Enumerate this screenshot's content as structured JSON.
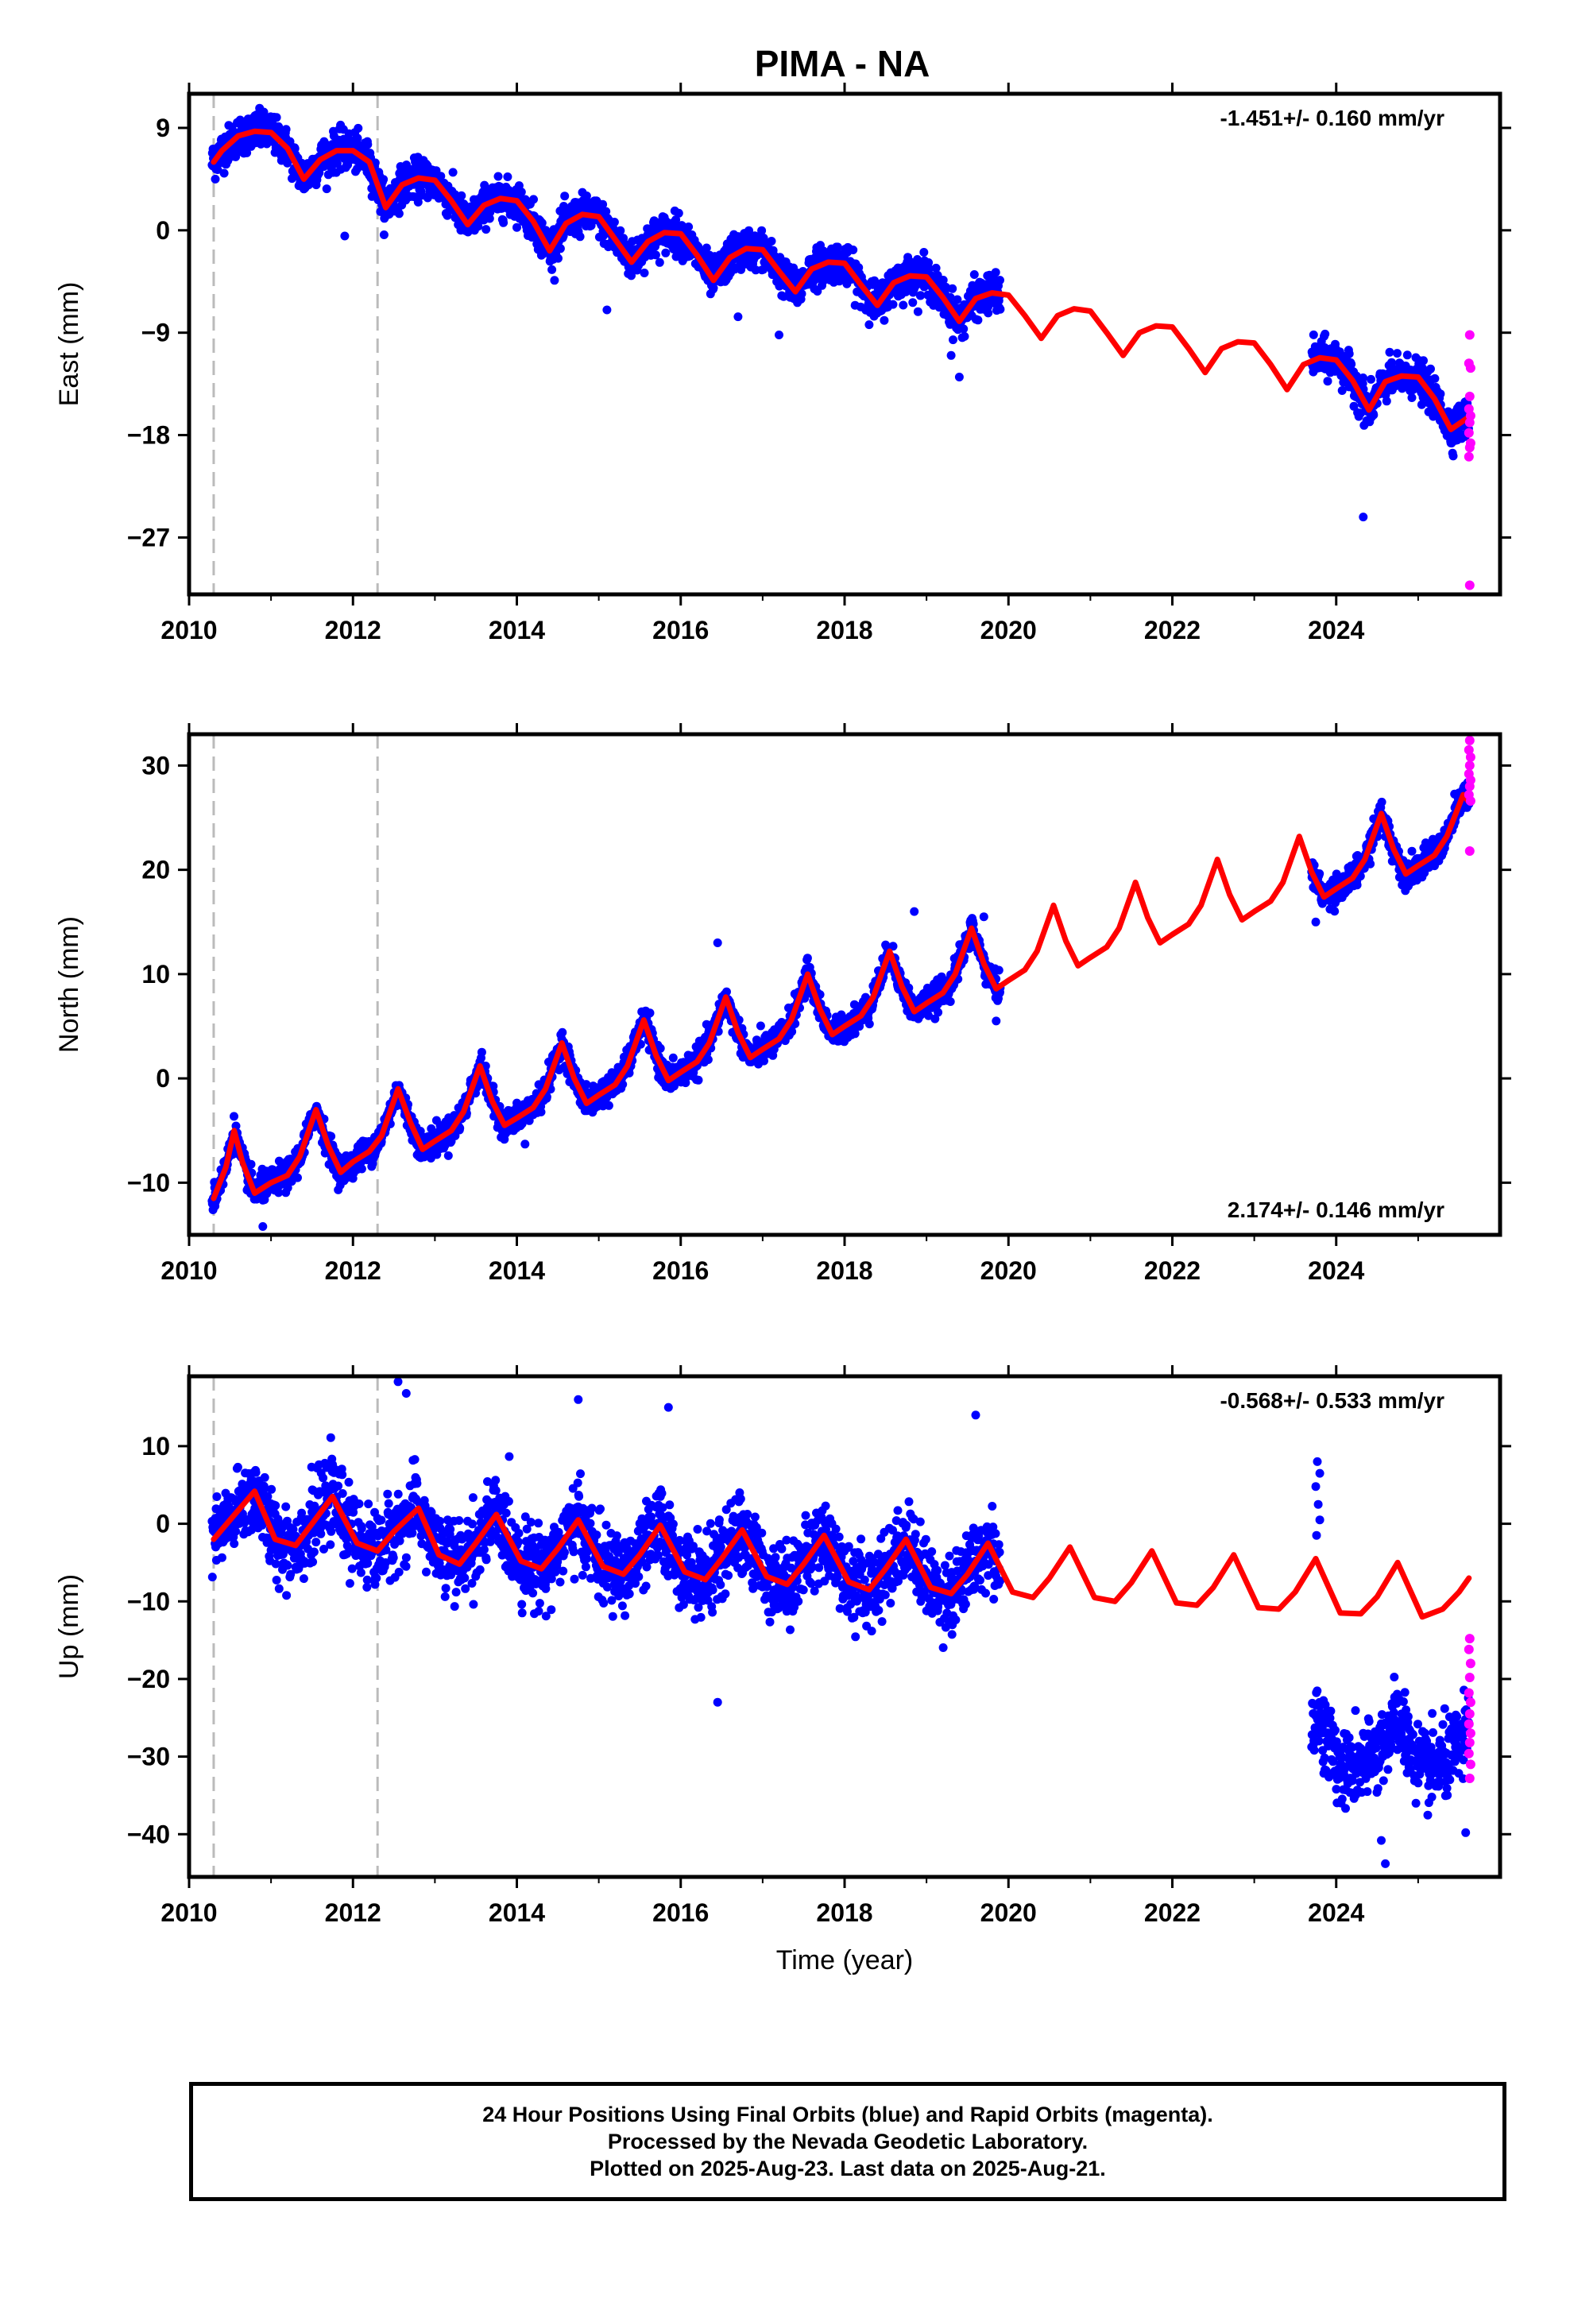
{
  "title": "PIMA - NA",
  "colors": {
    "final": "#0000ff",
    "rapid": "#ff00ff",
    "model": "#ff0000",
    "events": "#bbbbbb",
    "frame": "#000000"
  },
  "chart_data": [
    {
      "type": "scatter",
      "component": "east",
      "ylabel": "East (mm)",
      "xlabel": "",
      "xlim": [
        2010,
        2026
      ],
      "ylim": [
        -32,
        12
      ],
      "xticks": [
        2010,
        2012,
        2014,
        2016,
        2018,
        2020,
        2022,
        2024
      ],
      "yticks": [
        9,
        0,
        -9,
        -18,
        -27
      ],
      "rate_label": "-1.451+/- 0.160 mm/yr",
      "rate_position": "top-right",
      "event_lines": [
        2010.3,
        2012.3
      ],
      "model": {
        "x": [
          2010.3,
          2010.4,
          2010.6,
          2010.8,
          2011.0,
          2011.2,
          2011.4,
          2011.6,
          2011.8,
          2012.0,
          2012.2,
          2012.4,
          2012.6,
          2012.8,
          2013.0,
          2013.2,
          2013.4,
          2013.6,
          2013.8,
          2014.0,
          2014.2,
          2014.4,
          2014.6,
          2014.8,
          2015.0,
          2015.2,
          2015.4,
          2015.6,
          2015.8,
          2016.0,
          2016.2,
          2016.4,
          2016.6,
          2016.8,
          2017.0,
          2017.2,
          2017.4,
          2017.6,
          2017.8,
          2018.0,
          2018.2,
          2018.4,
          2018.6,
          2018.8,
          2019.0,
          2019.2,
          2019.4,
          2019.6,
          2019.8,
          2020.0,
          2020.2,
          2020.4,
          2020.6,
          2020.8,
          2021.0,
          2021.2,
          2021.4,
          2021.6,
          2021.8,
          2022.0,
          2022.2,
          2022.4,
          2022.6,
          2022.8,
          2023.0,
          2023.2,
          2023.4,
          2023.6,
          2023.8,
          2024.0,
          2024.2,
          2024.4,
          2024.6,
          2024.8,
          2025.0,
          2025.2,
          2025.4,
          2025.6
        ],
        "y": [
          6.0,
          7.0,
          8.3,
          8.7,
          8.6,
          7.2,
          4.5,
          6.2,
          7.0,
          7.0,
          6.0,
          2.0,
          4.0,
          4.6,
          4.4,
          2.6,
          0.5,
          2.2,
          2.8,
          2.6,
          0.8,
          -1.8,
          0.6,
          1.4,
          1.2,
          -0.8,
          -2.8,
          -1.0,
          -0.2,
          -0.3,
          -2.2,
          -4.4,
          -2.4,
          -1.6,
          -1.7,
          -3.6,
          -5.4,
          -3.4,
          -2.8,
          -2.9,
          -4.8,
          -6.6,
          -4.6,
          -4.0,
          -4.1,
          -5.9,
          -8.0,
          -6.0,
          -5.5,
          -5.7,
          -7.5,
          -9.5,
          -7.5,
          -6.9,
          -7.1,
          -9.0,
          -11.0,
          -9.0,
          -8.4,
          -8.5,
          -10.4,
          -12.5,
          -10.4,
          -9.8,
          -9.9,
          -11.8,
          -14.0,
          -11.8,
          -11.2,
          -11.4,
          -13.2,
          -15.8,
          -13.3,
          -12.8,
          -12.9,
          -14.8,
          -17.5,
          -16.5
        ]
      },
      "final_series": {
        "segments": [
          [
            2010.28,
            2019.9
          ],
          [
            2023.7,
            2025.62
          ]
        ],
        "amplitude_mm": 1.5,
        "outliers": [
          [
            2015.1,
            -7.0
          ],
          [
            2016.7,
            -7.6
          ],
          [
            2017.2,
            -9.2
          ],
          [
            2019.4,
            -12.9
          ],
          [
            2024.33,
            -25.2
          ],
          [
            2011.9,
            -0.5
          ],
          [
            2019.3,
            -11.0
          ]
        ]
      },
      "rapid_points": [
        [
          2025.63,
          -9.2
        ],
        [
          2025.62,
          -11.7
        ],
        [
          2025.64,
          -12.1
        ],
        [
          2025.63,
          -14.6
        ],
        [
          2025.62,
          -15.7
        ],
        [
          2025.64,
          -16.3
        ],
        [
          2025.63,
          -16.9
        ],
        [
          2025.62,
          -17.8
        ],
        [
          2025.64,
          -18.7
        ],
        [
          2025.63,
          -19.1
        ],
        [
          2025.62,
          -19.9
        ],
        [
          2025.63,
          -31.2
        ]
      ]
    },
    {
      "type": "scatter",
      "component": "north",
      "ylabel": "North (mm)",
      "xlabel": "",
      "xlim": [
        2010,
        2026
      ],
      "ylim": [
        -15,
        33
      ],
      "xticks": [
        2010,
        2012,
        2014,
        2016,
        2018,
        2020,
        2022,
        2024
      ],
      "yticks": [
        30,
        20,
        10,
        0,
        -10
      ],
      "rate_label": "2.174+/- 0.146 mm/yr",
      "rate_position": "bottom-right",
      "event_lines": [
        2010.3,
        2012.3
      ],
      "model": {
        "x": [
          2010.3,
          2010.45,
          2010.55,
          2010.65,
          2010.8,
          2011.0,
          2011.2,
          2011.35,
          2011.55,
          2011.7,
          2011.85,
          2012.0,
          2012.2,
          2012.35,
          2012.55,
          2012.7,
          2012.85,
          2013.0,
          2013.2,
          2013.35,
          2013.55,
          2013.7,
          2013.85,
          2014.0,
          2014.2,
          2014.35,
          2014.55,
          2014.7,
          2014.85,
          2015.0,
          2015.2,
          2015.35,
          2015.55,
          2015.7,
          2015.85,
          2016.0,
          2016.2,
          2016.35,
          2016.55,
          2016.7,
          2016.85,
          2017.0,
          2017.2,
          2017.35,
          2017.55,
          2017.7,
          2017.85,
          2018.0,
          2018.2,
          2018.35,
          2018.55,
          2018.7,
          2018.85,
          2019.0,
          2019.2,
          2019.35,
          2019.55,
          2019.7,
          2019.85,
          2020.0,
          2020.2,
          2020.35,
          2020.55,
          2020.7,
          2020.85,
          2021.0,
          2021.2,
          2021.35,
          2021.55,
          2021.7,
          2021.85,
          2022.0,
          2022.2,
          2022.35,
          2022.55,
          2022.7,
          2022.85,
          2023.0,
          2023.2,
          2023.35,
          2023.55,
          2023.7,
          2023.85,
          2024.0,
          2024.2,
          2024.35,
          2024.55,
          2024.7,
          2024.85,
          2025.0,
          2025.2,
          2025.35,
          2025.55,
          2025.62
        ],
        "y": [
          -11.5,
          -8.5,
          -5.0,
          -8.0,
          -11.0,
          -10.0,
          -9.3,
          -7.5,
          -3.0,
          -6.5,
          -9.0,
          -8.0,
          -7.0,
          -5.5,
          -1.0,
          -4.2,
          -6.8,
          -6.0,
          -5.0,
          -3.2,
          1.2,
          -2.2,
          -4.5,
          -3.8,
          -2.8,
          -1.0,
          3.4,
          0.0,
          -2.4,
          -1.6,
          -0.6,
          1.2,
          5.6,
          2.2,
          -0.2,
          0.6,
          1.6,
          3.4,
          7.8,
          4.4,
          2.0,
          2.8,
          3.8,
          5.6,
          10.0,
          6.6,
          4.2,
          5.0,
          6.0,
          7.8,
          12.2,
          8.8,
          6.4,
          7.2,
          8.2,
          10.0,
          14.4,
          11.0,
          8.6,
          9.4,
          10.4,
          12.2,
          16.6,
          13.2,
          10.8,
          11.6,
          12.6,
          14.4,
          18.8,
          15.4,
          13.0,
          13.8,
          14.8,
          16.6,
          21.0,
          17.6,
          15.2,
          16.0,
          17.0,
          18.8,
          23.2,
          19.8,
          17.4,
          18.2,
          19.2,
          21.0,
          25.4,
          22.0,
          19.6,
          20.4,
          21.4,
          23.2,
          27.2,
          26.5
        ]
      },
      "final_series": {
        "segments": [
          [
            2010.28,
            2019.9
          ],
          [
            2023.7,
            2025.62
          ]
        ],
        "amplitude_mm": 1.2,
        "outliers": [
          [
            2010.9,
            -14.2
          ],
          [
            2016.45,
            13.0
          ],
          [
            2014.1,
            -6.3
          ],
          [
            2023.75,
            15.0
          ],
          [
            2018.85,
            16.0
          ],
          [
            2019.7,
            15.5
          ],
          [
            2019.85,
            5.5
          ]
        ]
      },
      "rapid_points": [
        [
          2025.63,
          32.4
        ],
        [
          2025.62,
          31.5
        ],
        [
          2025.64,
          30.8
        ],
        [
          2025.63,
          30.0
        ],
        [
          2025.62,
          29.2
        ],
        [
          2025.64,
          28.6
        ],
        [
          2025.63,
          28.0
        ],
        [
          2025.62,
          27.2
        ],
        [
          2025.64,
          26.6
        ],
        [
          2025.63,
          21.8
        ]
      ]
    },
    {
      "type": "scatter",
      "component": "up",
      "ylabel": "Up (mm)",
      "xlabel": "Time (year)",
      "xlim": [
        2010,
        2026
      ],
      "ylim": [
        -45.5,
        19
      ],
      "xticks": [
        2010,
        2012,
        2014,
        2016,
        2018,
        2020,
        2022,
        2024
      ],
      "yticks": [
        10,
        0,
        -10,
        -20,
        -30,
        -40
      ],
      "rate_label": "-0.568+/- 0.533 mm/yr",
      "rate_position": "top-right",
      "event_lines": [
        2010.3,
        2012.3
      ],
      "model": {
        "x": [
          2010.3,
          2010.5,
          2010.8,
          2011.05,
          2011.3,
          2011.5,
          2011.75,
          2012.05,
          2012.3,
          2012.5,
          2012.8,
          2013.05,
          2013.3,
          2013.5,
          2013.75,
          2014.05,
          2014.3,
          2014.5,
          2014.75,
          2015.05,
          2015.3,
          2015.5,
          2015.75,
          2016.05,
          2016.3,
          2016.5,
          2016.75,
          2017.05,
          2017.3,
          2017.5,
          2017.75,
          2018.05,
          2018.3,
          2018.5,
          2018.75,
          2019.05,
          2019.3,
          2019.5,
          2019.75,
          2020.05,
          2020.3,
          2020.5,
          2020.75,
          2021.05,
          2021.3,
          2021.5,
          2021.75,
          2022.05,
          2022.3,
          2022.5,
          2022.75,
          2023.05,
          2023.3,
          2023.5,
          2023.75,
          2024.05,
          2024.3,
          2024.5,
          2024.75,
          2025.05,
          2025.3,
          2025.5,
          2025.62
        ],
        "y": [
          -2.0,
          0.5,
          4.2,
          -2.0,
          -2.8,
          0.0,
          3.5,
          -2.5,
          -3.5,
          -1.0,
          2.0,
          -4.0,
          -5.2,
          -2.5,
          1.2,
          -4.8,
          -5.8,
          -3.2,
          0.5,
          -5.5,
          -6.5,
          -4.0,
          -0.2,
          -6.2,
          -7.2,
          -4.5,
          -0.8,
          -6.8,
          -7.8,
          -5.2,
          -1.5,
          -7.5,
          -8.5,
          -5.8,
          -2.0,
          -8.2,
          -9.0,
          -6.5,
          -2.5,
          -8.8,
          -9.5,
          -7.0,
          -3.0,
          -9.5,
          -10.0,
          -7.6,
          -3.5,
          -10.2,
          -10.5,
          -8.2,
          -4.0,
          -10.8,
          -11.0,
          -8.8,
          -4.5,
          -11.5,
          -11.6,
          -9.4,
          -5.0,
          -12.0,
          -11.0,
          -8.8,
          -7.0
        ]
      },
      "final_series": {
        "segments": [
          [
            2010.28,
            2019.9
          ],
          [
            2023.7,
            2025.62
          ]
        ],
        "amplitude_mm": 4.5,
        "post_gap_offset_mm": -20.0,
        "outliers": [
          [
            2016.45,
            -23.0
          ],
          [
            2012.55,
            18.3
          ],
          [
            2012.65,
            16.8
          ],
          [
            2014.75,
            16.0
          ],
          [
            2015.85,
            15.0
          ],
          [
            2024.6,
            -43.8
          ],
          [
            2024.55,
            -40.8
          ],
          [
            2025.58,
            -39.8
          ],
          [
            2023.77,
            8.0
          ],
          [
            2023.8,
            6.5
          ],
          [
            2023.75,
            4.8
          ],
          [
            2023.78,
            2.5
          ],
          [
            2023.8,
            0.5
          ],
          [
            2023.76,
            -1.5
          ],
          [
            2019.6,
            14.0
          ]
        ]
      },
      "rapid_points": [
        [
          2025.63,
          -14.8
        ],
        [
          2025.62,
          -16.2
        ],
        [
          2025.64,
          -18.0
        ],
        [
          2025.63,
          -19.8
        ],
        [
          2025.62,
          -21.8
        ],
        [
          2025.64,
          -23.0
        ],
        [
          2025.63,
          -24.5
        ],
        [
          2025.62,
          -25.8
        ],
        [
          2025.64,
          -27.0
        ],
        [
          2025.63,
          -28.2
        ],
        [
          2025.62,
          -29.6
        ],
        [
          2025.64,
          -31.0
        ],
        [
          2025.63,
          -32.8
        ]
      ]
    }
  ],
  "footer": {
    "line1": "24 Hour Positions Using Final Orbits (blue) and Rapid Orbits (magenta).",
    "line2": "Processed by the Nevada Geodetic Laboratory.",
    "line3": "Plotted on 2025-Aug-23. Last data on 2025-Aug-21."
  }
}
